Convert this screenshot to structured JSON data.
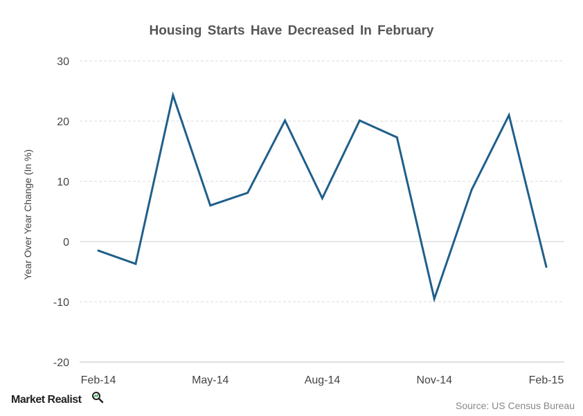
{
  "chart_data": {
    "type": "line",
    "title": "Housing  Starts  Have  Decreased  In  February",
    "ylabel": "Year Over Year Change (In %)",
    "xlabel": "",
    "ylim": [
      -20,
      30
    ],
    "yticks": [
      -20,
      -10,
      0,
      10,
      20,
      30
    ],
    "x": [
      "Feb-14",
      "Mar-14",
      "Apr-14",
      "May-14",
      "Jun-14",
      "Jul-14",
      "Aug-14",
      "Sep-14",
      "Oct-14",
      "Nov-14",
      "Dec-14",
      "Jan-15",
      "Feb-15"
    ],
    "xtick_labels": [
      "Feb-14",
      "May-14",
      "Aug-14",
      "Nov-14",
      "Feb-15"
    ],
    "series": [
      {
        "values": [
          -1.5,
          -3.7,
          24.3,
          6.0,
          8.1,
          20.1,
          7.2,
          20.1,
          17.3,
          -9.5,
          8.6,
          21.0,
          -4.2
        ]
      }
    ],
    "grid": true,
    "line_color": "#1f5f8b"
  },
  "footer": {
    "brand": "Market Realist",
    "source": "Source:  US Census Bureau"
  }
}
